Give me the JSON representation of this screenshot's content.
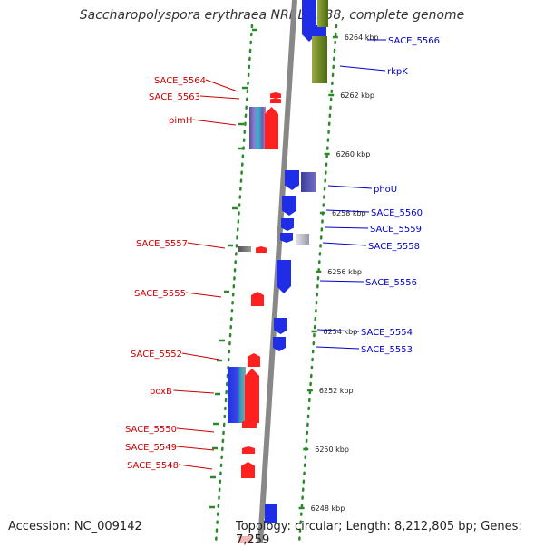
{
  "title": "Saccharopolyspora erythraea NRRL 2338, complete genome",
  "footer": {
    "accession": "Accession: NC_009142",
    "topology": "Topology: circular; Length: 8,212,805 bp; Genes: 7,259"
  },
  "colors": {
    "forward_label": "#cc0000",
    "reverse_label": "#0000cc",
    "forward_gene": "#ff2020",
    "reverse_gene": "#1f2ee6",
    "tick_dots": "#2a8a2a",
    "backbone": "#888888"
  },
  "ticks": [
    "6264 kbp",
    "6262 kbp",
    "6260 kbp",
    "6258 kbp",
    "6256 kbp",
    "6254 kbp",
    "6252 kbp",
    "6250 kbp",
    "6248 kbp"
  ],
  "left_labels": [
    "SACE_5564",
    "SACE_5563",
    "pimH",
    "SACE_5557",
    "SACE_5555",
    "SACE_5552",
    "poxB",
    "SACE_5550",
    "SACE_5549",
    "SACE_5548"
  ],
  "right_labels": [
    "SACE_5566",
    "rkpK",
    "phoU",
    "SACE_5560",
    "SACE_5559",
    "SACE_5558",
    "SACE_5556",
    "SACE_5554",
    "SACE_5553"
  ]
}
